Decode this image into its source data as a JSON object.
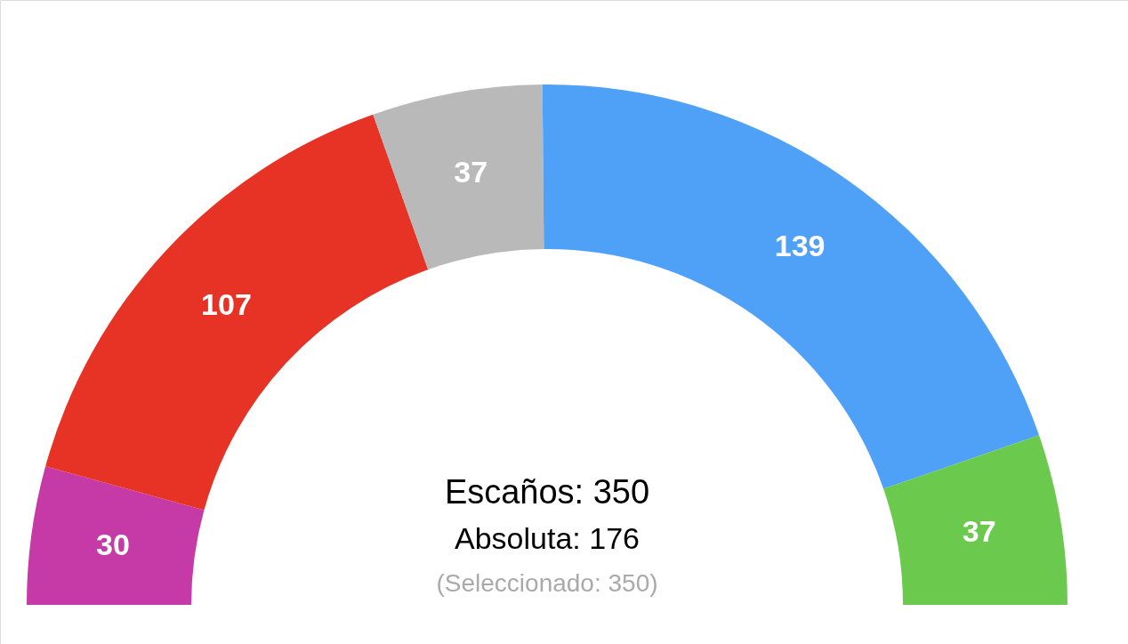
{
  "chart_data": {
    "type": "donut",
    "categories": [
      null,
      null,
      null,
      null,
      null
    ],
    "values": [
      30,
      107,
      37,
      139,
      37
    ],
    "colors": [
      "#c53aa6",
      "#e63325",
      "#b9b9b9",
      "#4ea1f7",
      "#6bc94d"
    ],
    "data_labels": true,
    "annotations": [
      "Escaños: 350",
      "Absoluta: 176",
      "(Seleccionado: 350)"
    ]
  }
}
